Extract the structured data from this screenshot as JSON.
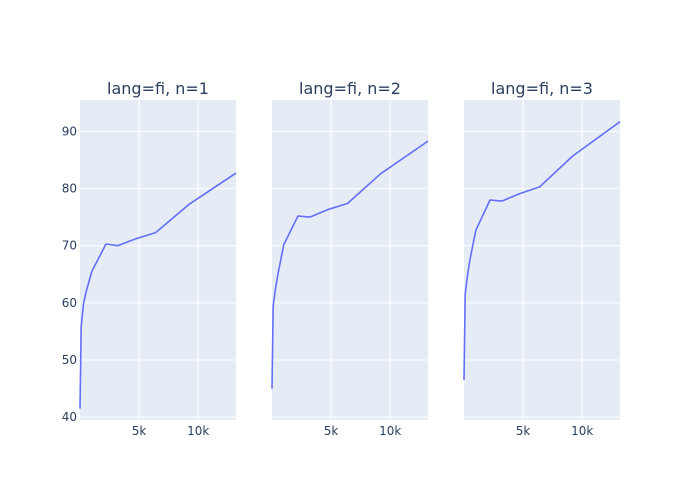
{
  "chart_data": {
    "type": "line",
    "x_domain": [
      0,
      13200
    ],
    "y_domain": [
      39.5,
      95.5
    ],
    "y_ticks": [
      40,
      50,
      60,
      70,
      80,
      90
    ],
    "y_tick_labels": [
      "40",
      "50",
      "60",
      "70",
      "80",
      "90"
    ],
    "x_ticks": [
      5000,
      10000
    ],
    "x_tick_labels": [
      "5k",
      "10k"
    ],
    "grid": true,
    "line_color": "#636EFA",
    "panels": [
      {
        "title": "lang=fi, n=1",
        "x": [
          0,
          100,
          300,
          500,
          1000,
          2200,
          3200,
          4700,
          6400,
          9200,
          13200
        ],
        "y": [
          41.5,
          55.8,
          59.8,
          61.8,
          65.5,
          70.3,
          70.0,
          71.2,
          72.3,
          77.2,
          82.7
        ]
      },
      {
        "title": "lang=fi, n=2",
        "x": [
          0,
          100,
          300,
          500,
          1000,
          2200,
          3200,
          4700,
          6400,
          9200,
          13200
        ],
        "y": [
          45.0,
          59.5,
          62.5,
          65.0,
          70.2,
          75.2,
          75.0,
          76.3,
          77.4,
          82.6,
          88.3
        ]
      },
      {
        "title": "lang=fi, n=3",
        "x": [
          0,
          100,
          300,
          500,
          1000,
          2200,
          3200,
          4700,
          6400,
          9200,
          13200
        ],
        "y": [
          46.5,
          61.5,
          64.8,
          67.5,
          72.7,
          78.0,
          77.8,
          79.1,
          80.3,
          85.7,
          91.7
        ]
      }
    ]
  }
}
